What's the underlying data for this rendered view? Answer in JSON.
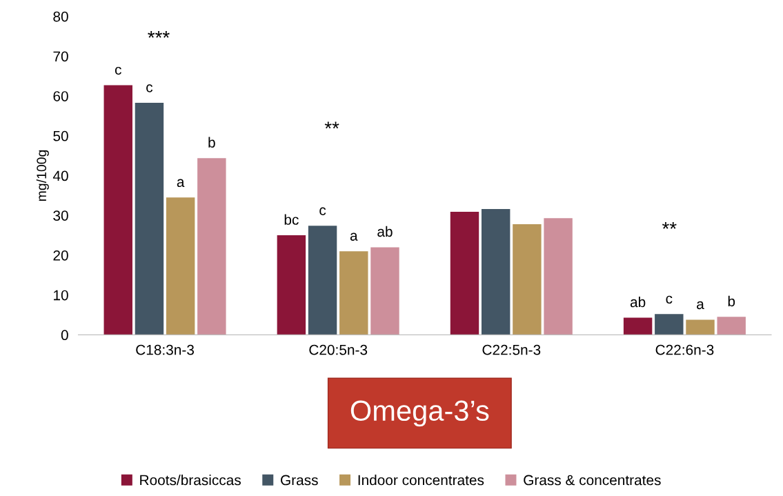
{
  "chart_data": {
    "type": "bar",
    "ylabel": "mg/100g",
    "categories": [
      "C18:3n-3",
      "C20:5n-3",
      "C22:5n-3",
      "C22:6n-3"
    ],
    "series": [
      {
        "name": "Roots/brasiccas",
        "color": "#8b1538",
        "values": [
          62.7,
          25.0,
          30.9,
          4.3
        ],
        "value_labels": [
          "c",
          "bc",
          null,
          "ab"
        ]
      },
      {
        "name": "Grass",
        "color": "#435665",
        "values": [
          58.3,
          27.4,
          31.6,
          5.2
        ],
        "value_labels": [
          "c",
          "c",
          null,
          "c"
        ]
      },
      {
        "name": "Indoor concentrates",
        "color": "#b8975a",
        "values": [
          34.5,
          21.0,
          27.8,
          3.8
        ],
        "value_labels": [
          "a",
          "a",
          null,
          "a"
        ]
      },
      {
        "name": "Grass & concentrates",
        "color": "#cd8f9b",
        "values": [
          44.4,
          22.0,
          29.3,
          4.5
        ],
        "value_labels": [
          "b",
          "ab",
          null,
          "b"
        ]
      }
    ],
    "ylim": [
      0,
      80
    ],
    "yticks": [
      0,
      10,
      20,
      30,
      40,
      50,
      60,
      70,
      80
    ],
    "annotations": [
      "***",
      "**",
      "**",
      "Omega-3’s"
    ],
    "legend": "bottom",
    "grid": false
  }
}
